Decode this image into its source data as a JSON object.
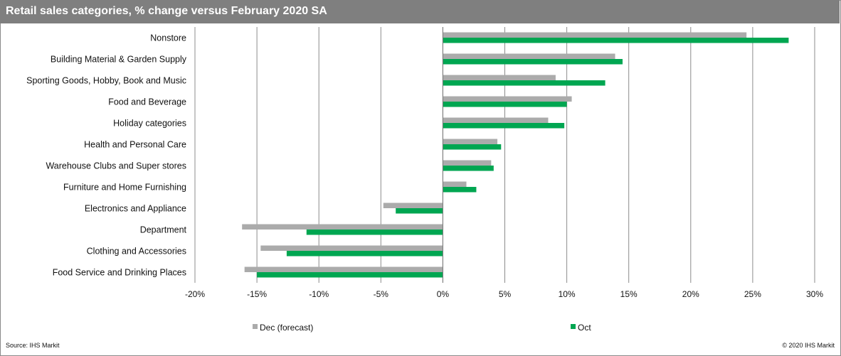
{
  "header": {
    "title": "Retail sales categories, % change versus February 2020 SA"
  },
  "footer": {
    "source": "Source:  IHS Markit",
    "copyright": "© 2020  IHS Markit"
  },
  "colors": {
    "dec": "#ababab",
    "oct": "#00a651",
    "grid": "#8c8c8c",
    "title_bg": "#7f7f7f"
  },
  "chart_data": {
    "type": "bar",
    "orientation": "horizontal",
    "categories": [
      "Nonstore",
      "Building Material & Garden Supply",
      "Sporting Goods, Hobby, Book and Music",
      "Food and Beverage",
      "Holiday categories ",
      "Health and Personal Care",
      "Warehouse Clubs and Super stores",
      "Furniture and Home Furnishing",
      "Electronics and Appliance",
      "Department ",
      "Clothing and Accessories",
      "Food Service and Drinking Places"
    ],
    "series": [
      {
        "name": "Dec (forecast)",
        "values": [
          24.5,
          13.9,
          9.1,
          10.4,
          8.5,
          4.4,
          3.9,
          1.9,
          -4.8,
          -16.2,
          -14.7,
          -16.0
        ]
      },
      {
        "name": "Oct",
        "values": [
          27.9,
          14.5,
          13.1,
          10.0,
          9.8,
          4.7,
          4.1,
          2.7,
          -3.8,
          -11.0,
          -12.6,
          -15.0
        ]
      }
    ],
    "xlim": [
      -20,
      30
    ],
    "x_ticks": [
      "-20%",
      "-15%",
      "-10%",
      "-5%",
      "0%",
      "5%",
      "10%",
      "15%",
      "20%",
      "25%",
      "30%"
    ],
    "grid": true,
    "legend_position": "bottom"
  }
}
